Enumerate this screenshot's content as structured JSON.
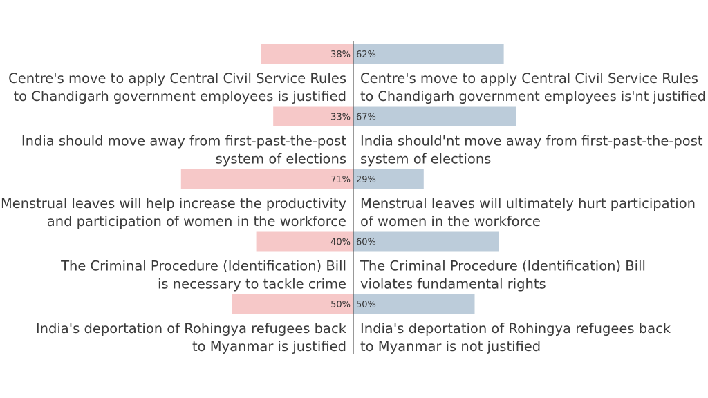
{
  "chart_data": {
    "type": "bar",
    "layout": "diverging-horizontal",
    "title": "",
    "xlabel": "",
    "ylabel": "",
    "xlim": [
      0,
      100
    ],
    "grid": false,
    "legend": "none",
    "colors": {
      "left": "#f6c8c8",
      "right": "#bcccda",
      "axis": "#555555"
    },
    "rows": [
      {
        "left_value": 38,
        "right_value": 62,
        "left_label": "38%",
        "right_label": "62%",
        "left_text": [
          "Centre's move to apply Central Civil Service Rules",
          "to Chandigarh government employees is justified"
        ],
        "right_text": [
          "Centre's move to apply Central Civil Service Rules",
          "to Chandigarh government employees is'nt justified"
        ]
      },
      {
        "left_value": 33,
        "right_value": 67,
        "left_label": "33%",
        "right_label": "67%",
        "left_text": [
          "India should move away from first-past-the-post",
          "system of elections"
        ],
        "right_text": [
          "India should'nt move away from first-past-the-post",
          "system of elections"
        ]
      },
      {
        "left_value": 71,
        "right_value": 29,
        "left_label": "71%",
        "right_label": "29%",
        "left_text": [
          "Menstrual leaves will help increase the productivity",
          "and participation of women in the workforce"
        ],
        "right_text": [
          "Menstrual leaves will ultimately hurt participation",
          "of women in the workforce"
        ]
      },
      {
        "left_value": 40,
        "right_value": 60,
        "left_label": "40%",
        "right_label": "60%",
        "left_text": [
          "The Criminal Procedure (Identification) Bill",
          "is necessary to tackle crime"
        ],
        "right_text": [
          "The Criminal Procedure (Identification) Bill",
          "violates fundamental rights"
        ]
      },
      {
        "left_value": 50,
        "right_value": 50,
        "left_label": "50%",
        "right_label": "50%",
        "left_text": [
          "India's deportation of Rohingya refugees back",
          "to Myanmar is justified"
        ],
        "right_text": [
          "India's deportation of Rohingya refugees back",
          "to Myanmar is not justified"
        ]
      }
    ]
  }
}
